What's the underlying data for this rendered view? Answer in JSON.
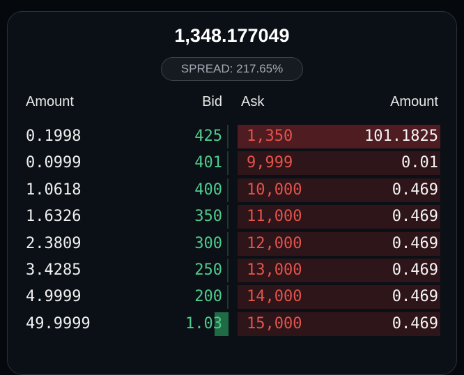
{
  "header": {
    "price": "1,348.177049",
    "spread": "SPREAD: 217.65%"
  },
  "columns": [
    "Amount",
    "Bid",
    "Ask",
    "Amount"
  ],
  "rows": [
    {
      "bid_amount": "0.1998",
      "bid": "425",
      "ask": "1,350",
      "ask_amount": "101.1825"
    },
    {
      "bid_amount": "0.0999",
      "bid": "401",
      "ask": "9,999",
      "ask_amount": "0.01"
    },
    {
      "bid_amount": "1.0618",
      "bid": "400",
      "ask": "10,000",
      "ask_amount": "0.469"
    },
    {
      "bid_amount": "1.6326",
      "bid": "350",
      "ask": "11,000",
      "ask_amount": "0.469"
    },
    {
      "bid_amount": "2.3809",
      "bid": "300",
      "ask": "12,000",
      "ask_amount": "0.469"
    },
    {
      "bid_amount": "3.4285",
      "bid": "250",
      "ask": "13,000",
      "ask_amount": "0.469"
    },
    {
      "bid_amount": "4.9999",
      "bid": "200",
      "ask": "14,000",
      "ask_amount": "0.469"
    },
    {
      "bid_amount": "49.9999",
      "bid": "1.03",
      "ask": "15,000",
      "ask_amount": "0.469"
    }
  ]
}
